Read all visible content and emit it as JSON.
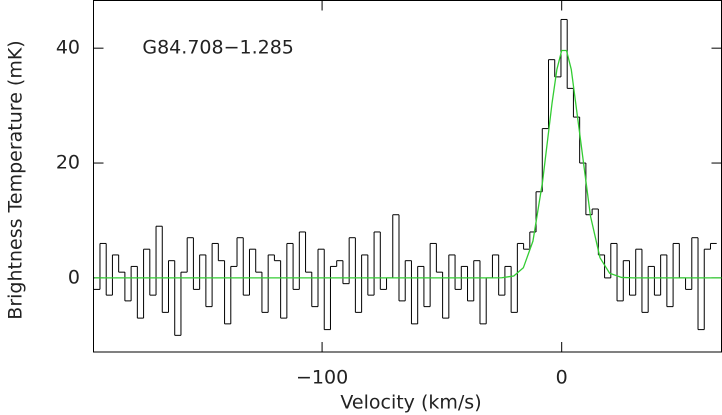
{
  "chart_data": {
    "type": "line",
    "xlabel": "Velocity (km/s)",
    "ylabel": "Brightness Temperature (mK)",
    "annotation": {
      "text": "G84.708−1.285",
      "x": -175,
      "y": 40
    },
    "xlim": [
      -195.4,
      66.7
    ],
    "ylim": [
      -12.9,
      48.3
    ],
    "xticks": [
      {
        "value": -100,
        "label": "−100"
      },
      0
    ],
    "yticks": [
      0,
      20,
      40
    ],
    "series": [
      {
        "style": "steps",
        "color": "#000000",
        "x": [
          -194,
          -191.4,
          -188.8,
          -186.2,
          -183.6,
          -181,
          -178.4,
          -175.8,
          -173.2,
          -170.6,
          -168,
          -165.4,
          -162.8,
          -160.2,
          -157.6,
          -155,
          -152.4,
          -149.8,
          -147.2,
          -144.6,
          -142,
          -139.4,
          -136.8,
          -134.2,
          -131.6,
          -129,
          -126.4,
          -123.8,
          -121.2,
          -118.6,
          -116,
          -113.4,
          -110.8,
          -108.2,
          -105.6,
          -103,
          -100.4,
          -97.8,
          -95.2,
          -92.6,
          -90,
          -87.4,
          -84.8,
          -82.2,
          -79.6,
          -77,
          -74.4,
          -71.8,
          -69.2,
          -66.6,
          -64,
          -61.4,
          -58.8,
          -56.2,
          -53.6,
          -51,
          -48.4,
          -45.8,
          -43.2,
          -40.6,
          -38,
          -35.4,
          -32.8,
          -30.2,
          -27.6,
          -25,
          -22.4,
          -19.8,
          -17.2,
          -14.6,
          -12,
          -9.4,
          -6.8,
          -4.2,
          -1.6,
          1,
          3.6,
          6.2,
          8.8,
          11.4,
          14,
          16.6,
          19.2,
          21.8,
          24.4,
          27,
          29.6,
          32.2,
          34.8,
          37.4,
          40,
          42.6,
          45.2,
          47.8,
          50.4,
          53,
          55.6,
          58.2,
          60.8,
          63.4
        ],
        "values": [
          -2,
          6,
          -3,
          4,
          1,
          -4,
          2,
          -7,
          5,
          -3,
          9,
          -6,
          3,
          -10,
          1,
          7,
          -2,
          4,
          -5,
          6,
          3,
          -8,
          2,
          7,
          -3,
          5,
          1,
          -6,
          4,
          3,
          -7,
          6,
          -2,
          8,
          1,
          -5,
          5,
          -9,
          2,
          3,
          -1,
          7,
          -6,
          4,
          -3,
          8,
          -2,
          0,
          11,
          -4,
          3,
          -8,
          2,
          -5,
          6,
          1,
          -7,
          4,
          -2,
          2,
          -4,
          3,
          -8,
          0,
          4,
          -3,
          2,
          -6,
          6,
          5,
          8,
          15,
          26,
          38,
          35,
          45,
          33,
          28,
          20,
          11,
          12,
          4,
          0,
          6,
          -4,
          3,
          -3,
          5,
          -6,
          2,
          -3,
          4,
          -5,
          6,
          0,
          -2,
          7,
          -9,
          5,
          6
        ]
      },
      {
        "style": "line",
        "color": "#33cc33",
        "x": [
          -195,
          -30,
          -25,
          -20,
          -16,
          -12,
          -8,
          -4,
          -2,
          0,
          2,
          4,
          8,
          12,
          16,
          20,
          25,
          30,
          67
        ],
        "values": [
          0,
          0,
          0.03,
          0.34,
          1.76,
          6.4,
          16.7,
          30.5,
          36.3,
          39.6,
          39.6,
          36.3,
          23.6,
          10.8,
          3.5,
          0.81,
          0.08,
          0,
          0
        ]
      }
    ]
  }
}
